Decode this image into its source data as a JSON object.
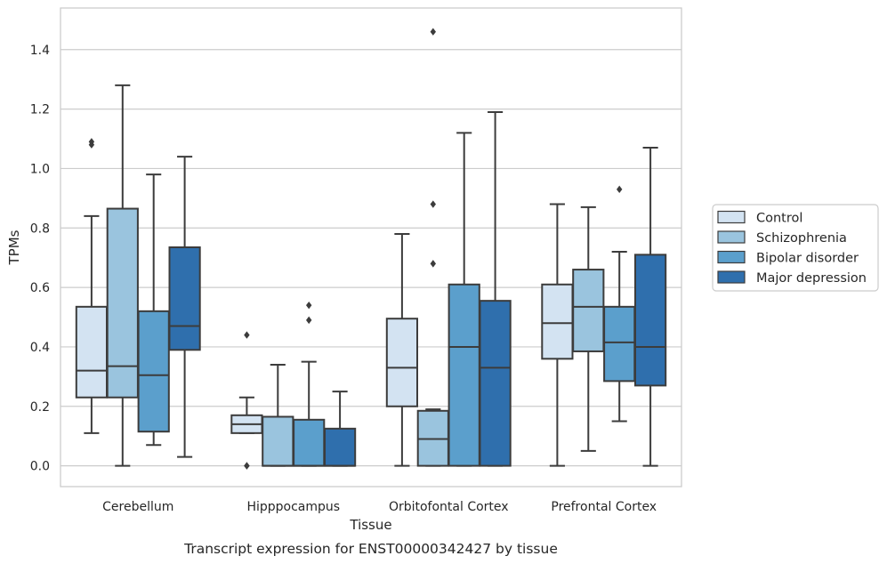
{
  "caption": "Transcript expression for ENST00000342427 by tissue",
  "chart_data": {
    "type": "box",
    "xlabel": "Tissue",
    "ylabel": "TPMs",
    "ylim": [
      -0.07,
      1.54
    ],
    "yticks": [
      0.0,
      0.2,
      0.4,
      0.6,
      0.8,
      1.0,
      1.2,
      1.4
    ],
    "ytick_labels": [
      "0.0",
      "0.2",
      "0.4",
      "0.6",
      "0.8",
      "1.0",
      "1.2",
      "1.4"
    ],
    "grid": "horizontal",
    "legend_position": "right",
    "categories": [
      "Cerebellum",
      "Hipppocampus",
      "Orbitofontal Cortex",
      "Prefrontal Cortex"
    ],
    "series": [
      {
        "name": "Control",
        "color": "#d3e3f2",
        "boxes": [
          {
            "whisker_low": 0.11,
            "q1": 0.23,
            "median": 0.32,
            "q3": 0.535,
            "whisker_high": 0.84,
            "outliers": [
              1.08,
              1.09
            ]
          },
          {
            "whisker_low": 0.11,
            "q1": 0.11,
            "median": 0.14,
            "q3": 0.17,
            "whisker_high": 0.23,
            "outliers": [
              0.0,
              0.0,
              0.44
            ]
          },
          {
            "whisker_low": 0.0,
            "q1": 0.2,
            "median": 0.33,
            "q3": 0.495,
            "whisker_high": 0.78,
            "outliers": []
          },
          {
            "whisker_low": 0.0,
            "q1": 0.36,
            "median": 0.48,
            "q3": 0.61,
            "whisker_high": 0.88,
            "outliers": []
          }
        ]
      },
      {
        "name": "Schizophrenia",
        "color": "#9ac4de",
        "boxes": [
          {
            "whisker_low": 0.0,
            "q1": 0.23,
            "median": 0.335,
            "q3": 0.865,
            "whisker_high": 1.28,
            "outliers": []
          },
          {
            "whisker_low": 0.0,
            "q1": 0.0,
            "median": 0.0,
            "q3": 0.165,
            "whisker_high": 0.34,
            "outliers": []
          },
          {
            "whisker_low": 0.0,
            "q1": 0.0,
            "median": 0.09,
            "q3": 0.185,
            "whisker_high": 0.19,
            "outliers": [
              0.68,
              0.88,
              1.46
            ]
          },
          {
            "whisker_low": 0.05,
            "q1": 0.385,
            "median": 0.535,
            "q3": 0.66,
            "whisker_high": 0.87,
            "outliers": []
          }
        ]
      },
      {
        "name": "Bipolar disorder",
        "color": "#5b9fcc",
        "boxes": [
          {
            "whisker_low": 0.07,
            "q1": 0.115,
            "median": 0.305,
            "q3": 0.52,
            "whisker_high": 0.98,
            "outliers": []
          },
          {
            "whisker_low": 0.0,
            "q1": 0.0,
            "median": 0.0,
            "q3": 0.155,
            "whisker_high": 0.35,
            "outliers": [
              0.49,
              0.54
            ]
          },
          {
            "whisker_low": 0.0,
            "q1": 0.0,
            "median": 0.4,
            "q3": 0.61,
            "whisker_high": 1.12,
            "outliers": []
          },
          {
            "whisker_low": 0.15,
            "q1": 0.285,
            "median": 0.415,
            "q3": 0.535,
            "whisker_high": 0.72,
            "outliers": [
              0.93
            ]
          }
        ]
      },
      {
        "name": "Major depression",
        "color": "#2f6fad",
        "boxes": [
          {
            "whisker_low": 0.03,
            "q1": 0.39,
            "median": 0.47,
            "q3": 0.735,
            "whisker_high": 1.04,
            "outliers": []
          },
          {
            "whisker_low": 0.0,
            "q1": 0.0,
            "median": 0.0,
            "q3": 0.125,
            "whisker_high": 0.25,
            "outliers": []
          },
          {
            "whisker_low": 0.0,
            "q1": 0.0,
            "median": 0.33,
            "q3": 0.555,
            "whisker_high": 1.19,
            "outliers": []
          },
          {
            "whisker_low": 0.0,
            "q1": 0.27,
            "median": 0.4,
            "q3": 0.71,
            "whisker_high": 1.07,
            "outliers": []
          }
        ]
      }
    ]
  }
}
